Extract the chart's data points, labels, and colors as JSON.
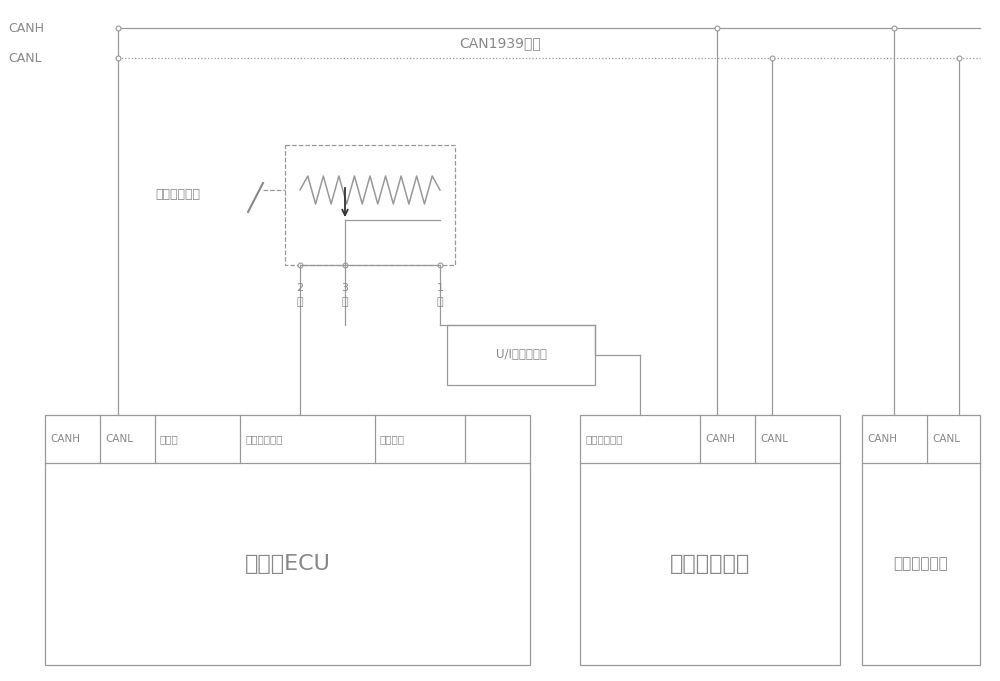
{
  "bg_color": "#ffffff",
  "line_color": "#999999",
  "text_color": "#888888",
  "fig_width": 10.0,
  "fig_height": 6.81,
  "canh_label": "CANH",
  "canl_label": "CANL",
  "bus_label": "CAN1939总线",
  "throttle_label": "电子油门控制",
  "ui_label": "U/I隔离放大器",
  "ecu_label": "发动机ECU",
  "crane_label": "起重机控制器",
  "wireless_label": "无线遥控装置",
  "pin1_label": "1",
  "pin1_color": "红",
  "pin2_label": "2",
  "pin2_color": "白",
  "pin3_label": "3",
  "pin3_color": "黑",
  "ecu_hdr": [
    "CANH",
    "CANL",
    "油门地",
    "油门电压信号",
    "油门电压"
  ],
  "crane_hdr": [
    "油门电流信号",
    "CANH",
    "CANL"
  ],
  "wireless_hdr": [
    "CANH",
    "CANL"
  ]
}
